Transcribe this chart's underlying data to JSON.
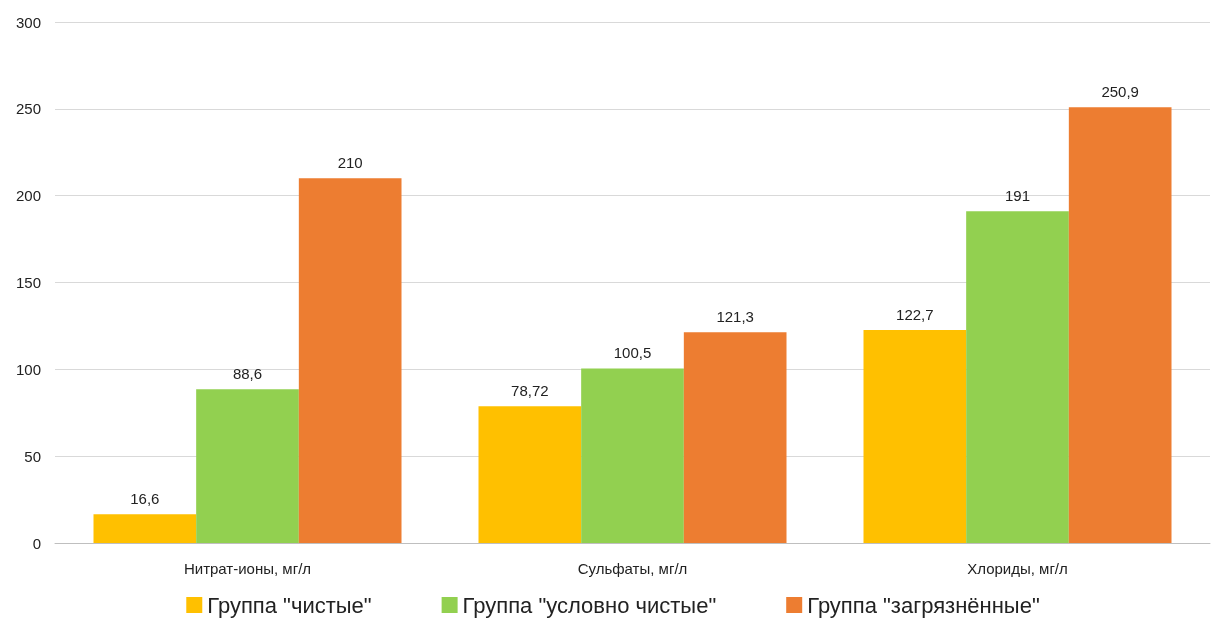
{
  "chart_data": {
    "type": "bar",
    "categories": [
      "Нитрат-ионы, мг/л",
      "Сульфаты, мг/л",
      "Хлориды, мг/л"
    ],
    "series": [
      {
        "name": "Группа \"чистые\"",
        "color": "#ffc000",
        "values": [
          16.6,
          78.72,
          122.7
        ],
        "value_labels": [
          "16,6",
          "78,72",
          "122,7"
        ]
      },
      {
        "name": "Группа \"условно чистые\"",
        "color": "#92d050",
        "values": [
          88.6,
          100.5,
          191
        ],
        "value_labels": [
          "88,6",
          "100,5",
          "191"
        ]
      },
      {
        "name": "Группа \"загрязнённые\"",
        "color": "#ed7d31",
        "values": [
          210,
          121.3,
          250.9
        ],
        "value_labels": [
          "210",
          "121,3",
          "250,9"
        ]
      }
    ],
    "ylim": [
      0,
      300
    ],
    "yticks": [
      0,
      50,
      100,
      150,
      200,
      250,
      300
    ],
    "grid": "y",
    "legend": "bottom"
  }
}
